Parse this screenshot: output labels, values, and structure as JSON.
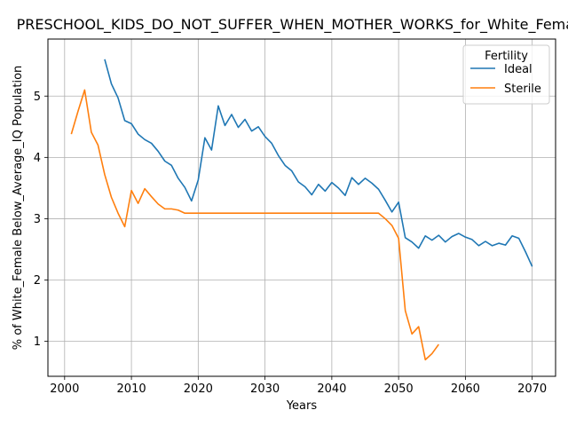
{
  "chart_data": {
    "type": "line",
    "title": "PRESCHOOL_KIDS_DO_NOT_SUFFER_WHEN_MOTHER_WORKS_for_White_Female",
    "xlabel": "Years",
    "ylabel": "% of White_Female Below_Average_IQ Population",
    "xlim": [
      1997.5,
      2073.5
    ],
    "ylim": [
      0.43,
      5.93
    ],
    "xticks": [
      2000,
      2010,
      2020,
      2030,
      2040,
      2050,
      2060,
      2070
    ],
    "yticks": [
      1,
      2,
      3,
      4,
      5
    ],
    "grid": true,
    "legend": {
      "title": "Fertility",
      "placement": "top-right"
    },
    "series": [
      {
        "name": "Ideal",
        "color": "#1f77b4",
        "x": [
          2006,
          2007,
          2008,
          2009,
          2010,
          2011,
          2012,
          2013,
          2014,
          2015,
          2016,
          2017,
          2018,
          2019,
          2020,
          2021,
          2022,
          2023,
          2024,
          2025,
          2026,
          2027,
          2028,
          2029,
          2030,
          2031,
          2032,
          2033,
          2034,
          2035,
          2036,
          2037,
          2038,
          2039,
          2040,
          2041,
          2042,
          2043,
          2044,
          2045,
          2046,
          2047,
          2048,
          2049,
          2050,
          2051,
          2052,
          2053,
          2054,
          2055,
          2056,
          2057,
          2058,
          2059,
          2060,
          2061,
          2062,
          2063,
          2064,
          2065,
          2066,
          2067,
          2068,
          2069,
          2070
        ],
        "y": [
          5.6,
          5.2,
          4.97,
          4.6,
          4.55,
          4.38,
          4.29,
          4.23,
          4.1,
          3.94,
          3.87,
          3.66,
          3.51,
          3.29,
          3.63,
          4.32,
          4.12,
          4.84,
          4.52,
          4.7,
          4.49,
          4.62,
          4.43,
          4.5,
          4.34,
          4.23,
          4.03,
          3.87,
          3.78,
          3.6,
          3.52,
          3.39,
          3.56,
          3.45,
          3.59,
          3.5,
          3.38,
          3.67,
          3.56,
          3.66,
          3.58,
          3.48,
          3.3,
          3.11,
          3.27,
          2.69,
          2.62,
          2.52,
          2.72,
          2.65,
          2.73,
          2.62,
          2.71,
          2.76,
          2.7,
          2.66,
          2.56,
          2.63,
          2.56,
          2.6,
          2.57,
          2.72,
          2.68,
          2.46,
          2.22
        ]
      },
      {
        "name": "Sterile",
        "color": "#ff7f0e",
        "x": [
          2001,
          2002,
          2003,
          2004,
          2005,
          2006,
          2007,
          2008,
          2009,
          2010,
          2011,
          2012,
          2013,
          2014,
          2015,
          2016,
          2017,
          2018,
          2019,
          2020,
          2021,
          2022,
          2023,
          2024,
          2025,
          2026,
          2027,
          2028,
          2029,
          2030,
          2031,
          2032,
          2033,
          2034,
          2035,
          2036,
          2037,
          2038,
          2039,
          2040,
          2041,
          2042,
          2043,
          2044,
          2045,
          2046,
          2047,
          2048,
          2049,
          2050,
          2051,
          2052,
          2053,
          2054,
          2055,
          2056
        ],
        "y": [
          4.38,
          4.75,
          5.1,
          4.41,
          4.2,
          3.72,
          3.35,
          3.09,
          2.87,
          3.46,
          3.25,
          3.49,
          3.36,
          3.24,
          3.16,
          3.16,
          3.14,
          3.09,
          3.09,
          3.09,
          3.09,
          3.09,
          3.09,
          3.09,
          3.09,
          3.09,
          3.09,
          3.09,
          3.09,
          3.09,
          3.09,
          3.09,
          3.09,
          3.09,
          3.09,
          3.09,
          3.09,
          3.09,
          3.09,
          3.09,
          3.09,
          3.09,
          3.09,
          3.09,
          3.09,
          3.09,
          3.09,
          3.0,
          2.89,
          2.68,
          1.5,
          1.12,
          1.24,
          0.7,
          0.8,
          0.95
        ]
      }
    ]
  }
}
